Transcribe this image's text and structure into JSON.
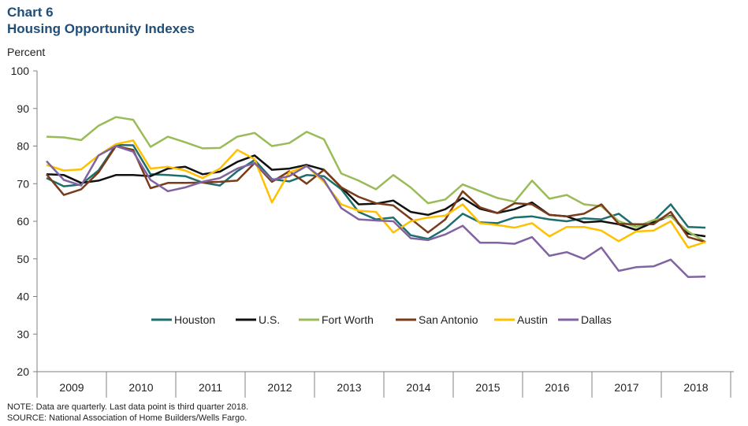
{
  "header": {
    "chart_number": "Chart 6",
    "title": "Housing Opportunity Indexes",
    "y_unit": "Percent"
  },
  "footnotes": {
    "note": "NOTE: Data are quarterly. Last data point is third quarter 2018.",
    "source": "SOURCE: National Association of Home Builders/Wells Fargo."
  },
  "chart_data": {
    "type": "line",
    "title": "Housing Opportunity Indexes",
    "ylabel": "Percent",
    "ylim": [
      20,
      100
    ],
    "yticks": [
      20,
      30,
      40,
      50,
      60,
      70,
      80,
      90,
      100
    ],
    "year_labels": [
      "2009",
      "2010",
      "2011",
      "2012",
      "2013",
      "2014",
      "2015",
      "2016",
      "2017",
      "2018"
    ],
    "legend_position": "inside-center",
    "grid": false,
    "series": [
      {
        "name": "Houston",
        "color": "#1f6e6e",
        "values": [
          71.5,
          69.3,
          69.8,
          73.5,
          80.3,
          80.2,
          72.5,
          72.3,
          72.0,
          70.3,
          69.5,
          73.3,
          76.3,
          71.2,
          70.6,
          72.3,
          72.0,
          68.5,
          62.5,
          60.5,
          61.0,
          56.3,
          55.3,
          58.0,
          62.0,
          59.7,
          59.5,
          61.0,
          61.3,
          60.5,
          60.0,
          60.8,
          60.5,
          62.0,
          58.5,
          60.0,
          64.5,
          58.5,
          58.3
        ]
      },
      {
        "name": "U.S.",
        "color": "#111111",
        "values": [
          72.5,
          72.3,
          70.2,
          70.8,
          72.3,
          72.3,
          72.0,
          74.0,
          74.5,
          72.5,
          73.2,
          75.8,
          77.5,
          73.7,
          74.0,
          75.0,
          73.7,
          69.0,
          64.5,
          64.7,
          65.5,
          62.5,
          61.7,
          63.2,
          66.2,
          63.3,
          62.2,
          63.2,
          65.0,
          61.7,
          61.3,
          59.7,
          60.0,
          59.2,
          57.7,
          59.7,
          61.5,
          56.7,
          56.0
        ]
      },
      {
        "name": "Fort Worth",
        "color": "#9bbb59",
        "values": [
          82.5,
          82.3,
          81.6,
          85.4,
          87.7,
          87.0,
          79.8,
          82.5,
          81.0,
          79.4,
          79.5,
          82.5,
          83.5,
          80.0,
          80.8,
          83.8,
          81.8,
          72.7,
          70.8,
          68.5,
          72.3,
          69.0,
          64.8,
          65.8,
          69.8,
          68.0,
          66.2,
          65.2,
          70.8,
          66.0,
          67.0,
          64.5,
          64.0,
          60.0,
          58.5,
          60.3,
          61.3,
          57.3,
          54.5
        ]
      },
      {
        "name": "San Antonio",
        "color": "#7a3b1a",
        "values": [
          72.5,
          67.0,
          68.5,
          73.0,
          80.0,
          79.0,
          68.8,
          70.2,
          70.2,
          70.3,
          70.5,
          70.8,
          75.5,
          70.5,
          73.3,
          70.0,
          73.7,
          69.0,
          66.5,
          64.8,
          64.2,
          60.7,
          57.0,
          60.5,
          68.0,
          63.7,
          62.2,
          64.8,
          64.5,
          61.7,
          61.3,
          62.0,
          64.5,
          59.3,
          59.2,
          59.2,
          62.5,
          55.8,
          54.5
        ]
      },
      {
        "name": "Austin",
        "color": "#ffc000",
        "values": [
          75.0,
          73.5,
          73.8,
          77.5,
          80.5,
          81.5,
          74.0,
          74.5,
          73.5,
          71.5,
          74.0,
          79.0,
          76.5,
          65.0,
          73.0,
          74.7,
          70.5,
          64.5,
          62.8,
          62.5,
          57.0,
          60.0,
          61.0,
          61.5,
          64.5,
          59.5,
          59.0,
          58.3,
          59.5,
          56.0,
          58.5,
          58.5,
          57.5,
          54.7,
          57.3,
          57.5,
          60.0,
          53.0,
          54.5
        ]
      },
      {
        "name": "Dallas",
        "color": "#8064a2",
        "values": [
          76.0,
          71.0,
          69.5,
          77.5,
          80.0,
          78.5,
          71.0,
          68.0,
          69.0,
          70.5,
          71.5,
          74.0,
          75.5,
          71.0,
          72.0,
          74.7,
          71.0,
          63.5,
          60.5,
          60.2,
          60.0,
          55.5,
          55.0,
          56.5,
          58.8,
          54.3,
          54.3,
          54.0,
          55.8,
          50.8,
          51.8,
          50.0,
          53.0,
          46.8,
          47.8,
          48.0,
          49.8,
          45.2,
          45.3
        ]
      }
    ]
  }
}
